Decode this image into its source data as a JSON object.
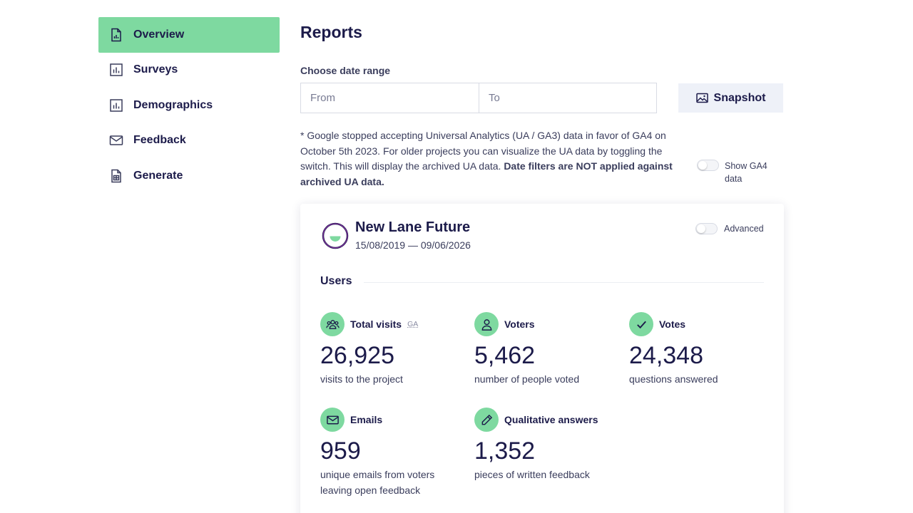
{
  "sidebar": {
    "items": [
      {
        "label": "Overview",
        "icon": "report-icon",
        "active": true
      },
      {
        "label": "Surveys",
        "icon": "bar-chart-icon",
        "active": false
      },
      {
        "label": "Demographics",
        "icon": "bar-chart-icon",
        "active": false
      },
      {
        "label": "Feedback",
        "icon": "mail-icon",
        "active": false
      },
      {
        "label": "Generate",
        "icon": "spreadsheet-icon",
        "active": false
      }
    ]
  },
  "main": {
    "title": "Reports",
    "date_range": {
      "label": "Choose date range",
      "from_placeholder": "From",
      "to_placeholder": "To"
    },
    "snapshot_label": "Snapshot",
    "notice": {
      "text": "* Google stopped accepting Universal Analytics (UA / GA3) data in favor of GA4 on October 5th 2023. For older projects you can visualize the UA data by toggling the switch. This will display the archived UA data. ",
      "bold": "Date filters are NOT applied against archived UA data."
    },
    "ga4_toggle_label": "Show GA4 data",
    "ga4_toggle_on": false
  },
  "card": {
    "project_name": "New Lane Future",
    "date_range": "15/08/2019 — 09/06/2026",
    "advanced_label": "Advanced",
    "advanced_on": false,
    "section_title": "Users",
    "stats": [
      {
        "title": "Total visits",
        "badge": "GA",
        "value": "26,925",
        "caption": "visits to the project",
        "icon": "users-icon"
      },
      {
        "title": "Voters",
        "badge": "",
        "value": "5,462",
        "caption": "number of people voted",
        "icon": "user-icon"
      },
      {
        "title": "Votes",
        "badge": "",
        "value": "24,348",
        "caption": "questions answered",
        "icon": "check-icon"
      },
      {
        "title": "Emails",
        "badge": "",
        "value": "959",
        "caption": "unique emails from voters leaving open feedback",
        "icon": "mail-icon"
      },
      {
        "title": "Qualitative answers",
        "badge": "",
        "value": "1,352",
        "caption": "pieces of written feedback",
        "icon": "pencil-icon"
      }
    ]
  },
  "colors": {
    "accent": "#7ed9a0",
    "text": "#1c1b4a",
    "muted": "#3a3d5c",
    "button_bg": "#eef1f8"
  }
}
